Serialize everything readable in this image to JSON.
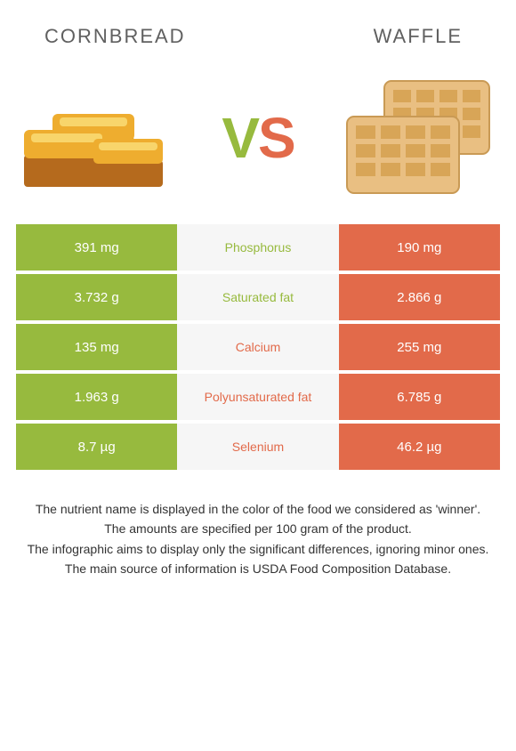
{
  "colors": {
    "left": "#97ba3e",
    "right": "#e26a4a",
    "mid_bg": "#f6f6f6",
    "text_mid_left": "#97ba3e",
    "text_mid_right": "#e26a4a"
  },
  "foods": {
    "left": {
      "name": "Cornbread"
    },
    "right": {
      "name": "Waffle"
    }
  },
  "vs": {
    "v": "V",
    "s": "S"
  },
  "table": {
    "rows": [
      {
        "left": "391 mg",
        "label": "Phosphorus",
        "right": "190 mg",
        "winner": "left"
      },
      {
        "left": "3.732 g",
        "label": "Saturated fat",
        "right": "2.866 g",
        "winner": "left"
      },
      {
        "left": "135 mg",
        "label": "Calcium",
        "right": "255 mg",
        "winner": "right"
      },
      {
        "left": "1.963 g",
        "label": "Polyunsaturated fat",
        "right": "6.785 g",
        "winner": "right"
      },
      {
        "left": "8.7 µg",
        "label": "Selenium",
        "right": "46.2 µg",
        "winner": "right"
      }
    ]
  },
  "footnotes": [
    "The nutrient name is displayed in the color of the food we considered as 'winner'.",
    "The amounts are specified per 100 gram of the product.",
    "The infographic aims to display only the significant differences, ignoring minor ones.",
    "The main source of information is USDA Food Composition Database."
  ]
}
